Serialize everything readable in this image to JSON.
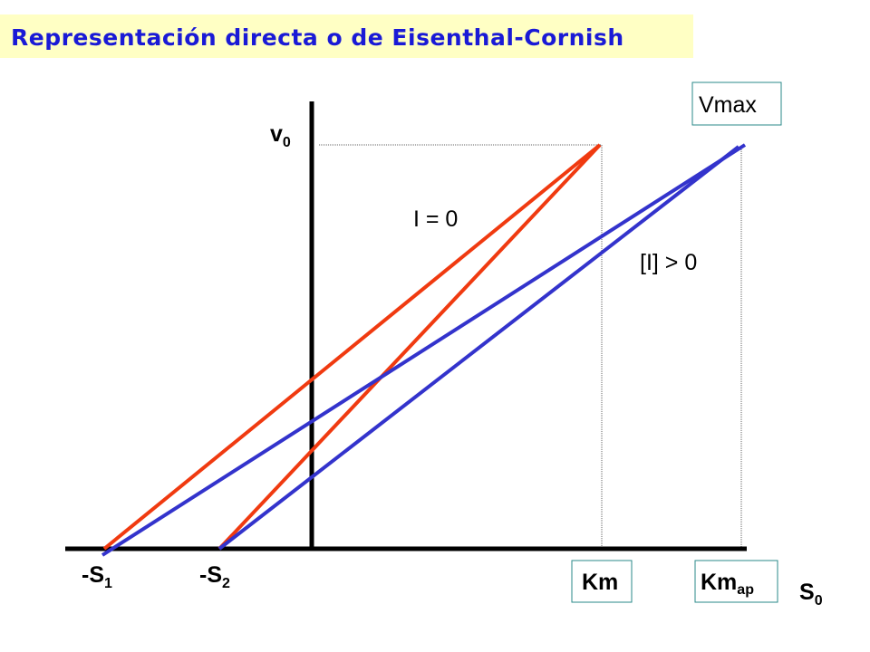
{
  "title": "Representación directa o de Eisenthal-Cornish",
  "colors": {
    "title_text": "#1a1ad6",
    "title_bg": "#ffffc4",
    "red": "#f03a10",
    "blue": "#3333cc",
    "axis": "#000000",
    "box_border": "#2a8a8a"
  },
  "labels": {
    "v0_base": "v",
    "v0_sub": "0",
    "s0_base": "S",
    "s0_sub": "0",
    "s1_base": "-S",
    "s1_sub": "1",
    "s2_base": "-S",
    "s2_sub": "2",
    "vmax": "Vmax",
    "km": "Km",
    "kmap_base": "Km",
    "kmap_sub": "ap",
    "i_zero": "I = 0",
    "i_pos": "[I] > 0"
  },
  "diagram": {
    "red_lines": "I = 0",
    "blue_lines": "[I] > 0",
    "point_labels": [
      "-S1",
      "-S2",
      "Km",
      "Kmap",
      "Vmax"
    ]
  }
}
